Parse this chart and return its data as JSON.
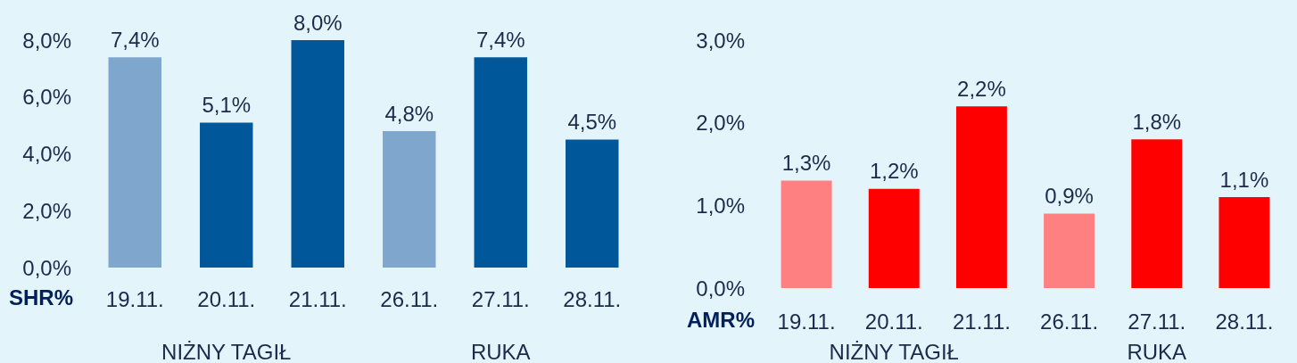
{
  "chart_data": [
    {
      "type": "bar",
      "ylabel": "SHR%",
      "categories": [
        "19.11.",
        "20.11.",
        "21.11.",
        "26.11.",
        "27.11.",
        "28.11."
      ],
      "values": [
        7.4,
        5.1,
        8.0,
        4.8,
        7.4,
        4.5
      ],
      "value_labels": [
        "7,4%",
        "5,1%",
        "8,0%",
        "4,8%",
        "7,4%",
        "4,5%"
      ],
      "colors": [
        "#7fa6cc",
        "#00589b",
        "#00589b",
        "#7fa6cc",
        "#00589b",
        "#00589b"
      ],
      "ylim": [
        0,
        8
      ],
      "yticks": [
        {
          "value": 0,
          "label": "0,0%"
        },
        {
          "value": 2,
          "label": "2,0%"
        },
        {
          "value": 4,
          "label": "4,0%"
        },
        {
          "value": 6,
          "label": "6,0%"
        },
        {
          "value": 8,
          "label": "8,0%"
        }
      ],
      "annotations": [
        "NIŻNY TAGIŁ",
        "RUKA"
      ]
    },
    {
      "type": "bar",
      "ylabel": "AMR%",
      "categories": [
        "19.11.",
        "20.11.",
        "21.11.",
        "26.11.",
        "27.11.",
        "28.11."
      ],
      "values": [
        1.3,
        1.2,
        2.2,
        0.9,
        1.8,
        1.1
      ],
      "value_labels": [
        "1,3%",
        "1,2%",
        "2,2%",
        "0,9%",
        "1,8%",
        "1,1%"
      ],
      "colors": [
        "#ff8080",
        "#ff0000",
        "#ff0000",
        "#ff8080",
        "#ff0000",
        "#ff0000"
      ],
      "ylim": [
        0,
        3
      ],
      "yticks": [
        {
          "value": 0,
          "label": "0,0%"
        },
        {
          "value": 1,
          "label": "1,0%"
        },
        {
          "value": 2,
          "label": "2,0%"
        },
        {
          "value": 3,
          "label": "3,0%"
        }
      ],
      "annotations": [
        "NIŻNY TAGIŁ",
        "RUKA"
      ]
    }
  ]
}
